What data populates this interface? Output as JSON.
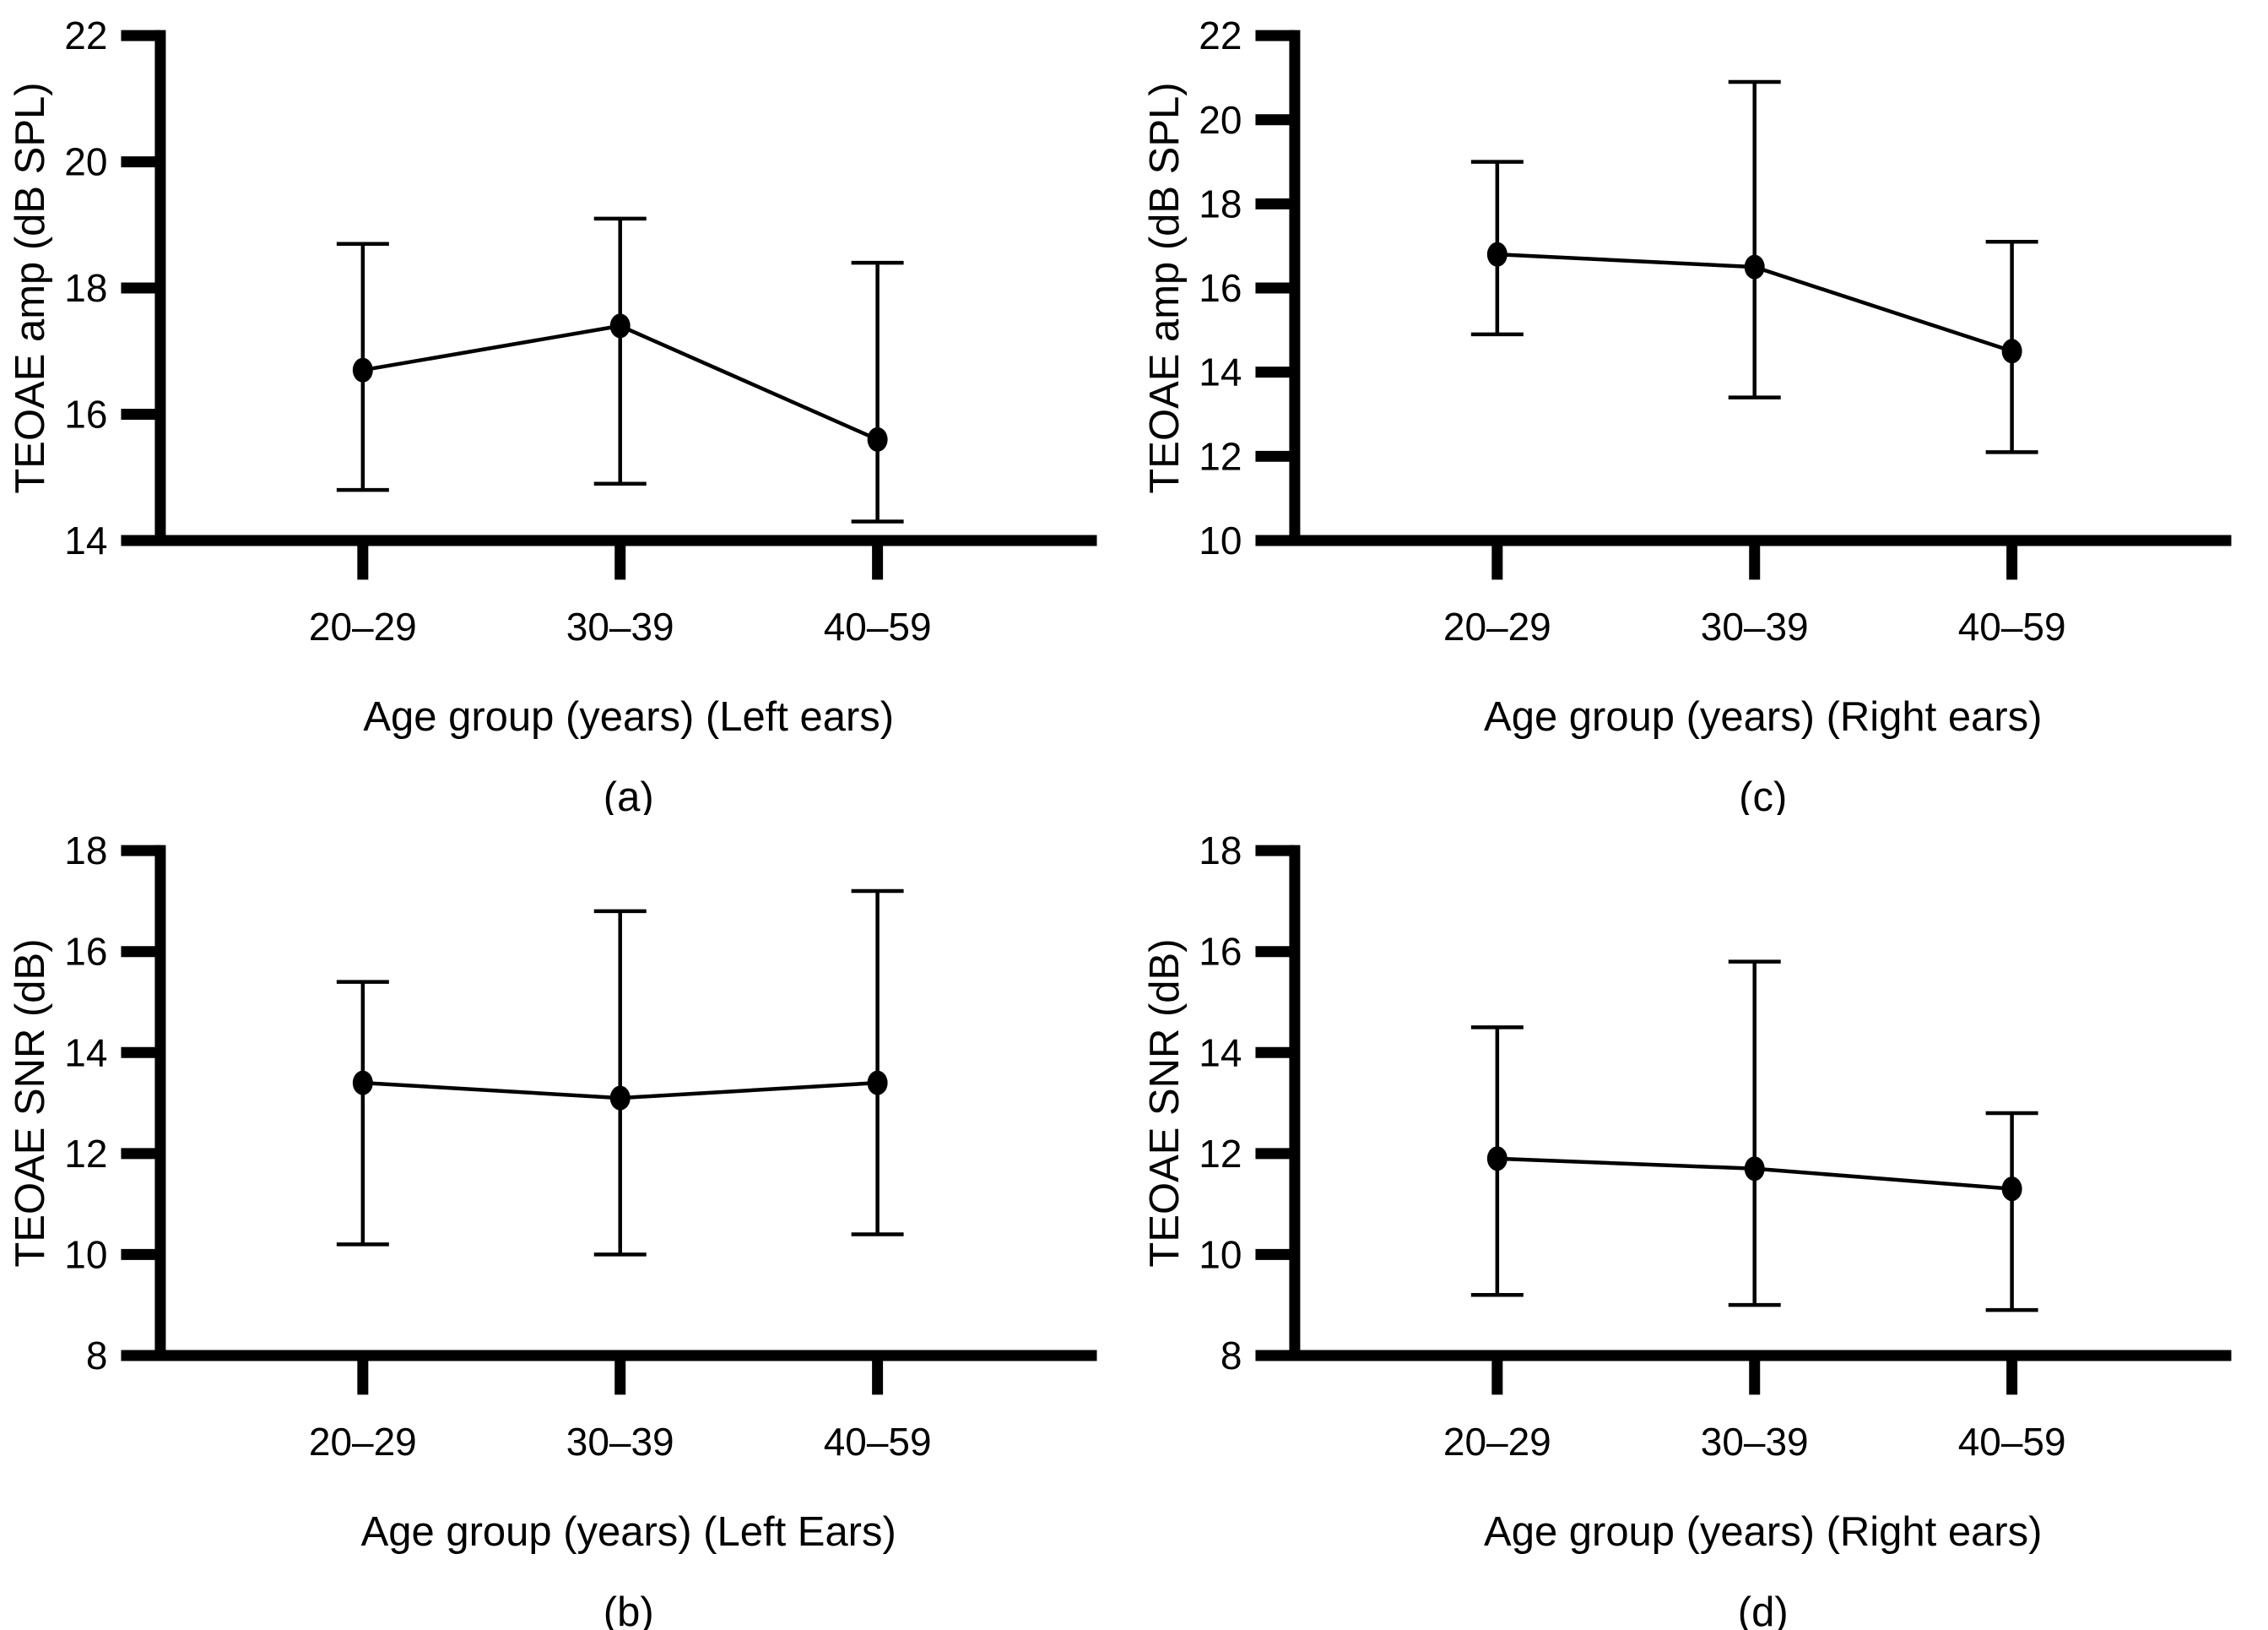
{
  "figure": {
    "background": "#ffffff",
    "ink_color": "#000000",
    "panel_order": [
      "a",
      "c",
      "b",
      "d"
    ]
  },
  "chart_data": [
    {
      "panel": "a",
      "type": "line",
      "error_bars": true,
      "categories": [
        "20–29",
        "30–39",
        "40–59"
      ],
      "means": [
        16.7,
        17.4,
        15.6
      ],
      "upper": [
        18.7,
        19.1,
        18.4
      ],
      "lower": [
        14.8,
        14.9,
        14.3
      ],
      "xlabel": "Age group (years) (Left ears)",
      "ylabel": "TEOAE amp (dB SPL)",
      "caption": "(a)",
      "ylim": [
        14,
        22
      ],
      "ytick_step": 2,
      "grid": false,
      "legend": "none",
      "marker_color": "#000000",
      "line_color": "#000000"
    },
    {
      "panel": "c",
      "type": "line",
      "error_bars": true,
      "categories": [
        "20–29",
        "30–39",
        "40–59"
      ],
      "means": [
        16.8,
        16.5,
        14.5
      ],
      "upper": [
        19.0,
        20.9,
        17.1
      ],
      "lower": [
        14.9,
        13.4,
        12.1
      ],
      "xlabel": "Age group (years) (Right ears)",
      "ylabel": "TEOAE amp (dB SPL)",
      "caption": "(c)",
      "ylim": [
        10,
        22
      ],
      "ytick_step": 2,
      "grid": false,
      "legend": "none",
      "marker_color": "#000000",
      "line_color": "#000000"
    },
    {
      "panel": "b",
      "type": "line",
      "error_bars": true,
      "categories": [
        "20–29",
        "30–39",
        "40–59"
      ],
      "means": [
        13.4,
        13.1,
        13.4
      ],
      "upper": [
        15.4,
        16.8,
        17.2
      ],
      "lower": [
        10.2,
        10.0,
        10.4
      ],
      "xlabel": "Age group (years) (Left Ears)",
      "ylabel": "TEOAE SNR (dB)",
      "caption": "(b)",
      "ylim": [
        8,
        18
      ],
      "ytick_step": 2,
      "grid": false,
      "legend": "none",
      "marker_color": "#000000",
      "line_color": "#000000"
    },
    {
      "panel": "d",
      "type": "line",
      "error_bars": true,
      "categories": [
        "20–29",
        "30–39",
        "40–59"
      ],
      "means": [
        11.9,
        11.7,
        11.3
      ],
      "upper": [
        14.5,
        15.8,
        12.8
      ],
      "lower": [
        9.2,
        9.0,
        8.9
      ],
      "xlabel": "Age group (years) (Right ears)",
      "ylabel": "TEOAE SNR (dB)",
      "caption": "(d)",
      "ylim": [
        8,
        18
      ],
      "ytick_step": 2,
      "grid": false,
      "legend": "none",
      "marker_color": "#000000",
      "line_color": "#000000"
    }
  ]
}
